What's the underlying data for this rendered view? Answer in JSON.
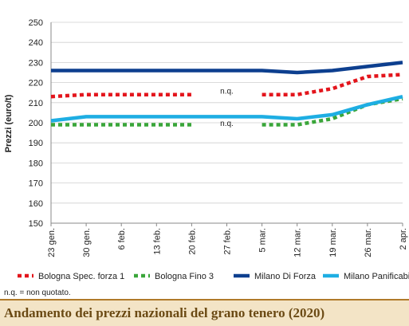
{
  "chart_data": {
    "type": "line",
    "ylabel": "Prezzi (euro/t)",
    "ylim": [
      150,
      250
    ],
    "yticks": [
      150,
      160,
      170,
      180,
      190,
      200,
      210,
      220,
      230,
      240,
      250
    ],
    "categories": [
      "23 gen.",
      "30 gen.",
      "6 feb.",
      "13 feb.",
      "20 feb.",
      "27 feb.",
      "5 mar.",
      "12 mar.",
      "19 mar.",
      "26 mar.",
      "2 apr."
    ],
    "grid": "horizontal",
    "legend_position": "bottom",
    "annotations": [
      {
        "text": "n.q.",
        "category": "27 feb.",
        "y": 216
      },
      {
        "text": "n.q.",
        "category": "27 feb.",
        "y": 200
      }
    ],
    "series": [
      {
        "name": "Bologna Spec. forza 1",
        "color": "#e3151c",
        "style": "dotted",
        "values": [
          213,
          214,
          214,
          214,
          214,
          null,
          214,
          214,
          217,
          223,
          224
        ]
      },
      {
        "name": "Bologna Fino 3",
        "color": "#3aa63a",
        "style": "dotted",
        "values": [
          199,
          199,
          199,
          199,
          199,
          null,
          199,
          199,
          202,
          209,
          212
        ]
      },
      {
        "name": "Milano Di Forza",
        "color": "#0d3f8f",
        "style": "solid",
        "values": [
          226,
          226,
          226,
          226,
          226,
          226,
          226,
          225,
          226,
          228,
          230
        ]
      },
      {
        "name": "Milano Panificabile",
        "color": "#1eaee3",
        "style": "solid",
        "values": [
          201,
          203,
          203,
          203,
          203,
          203,
          203,
          202,
          204,
          209,
          213
        ]
      }
    ]
  },
  "footnote": "n.q. = non quotato.",
  "caption": "Andamento dei prezzi nazionali del grano tenero (2020)"
}
